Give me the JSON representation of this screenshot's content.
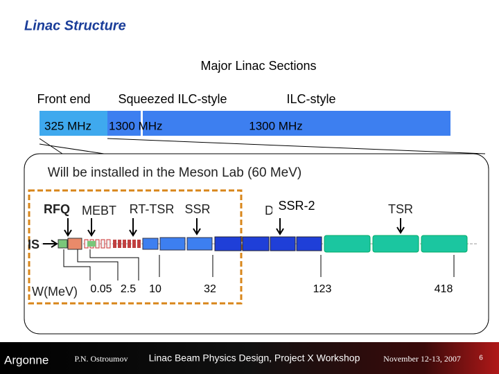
{
  "header": {
    "title": "Linac Structure"
  },
  "sections": {
    "title": "Major Linac Sections",
    "labels": [
      "Front end",
      "Squeezed ILC-style",
      "ILC-style"
    ],
    "frequencies": [
      "325 MHz",
      "1300 MHz",
      "1300 MHz"
    ]
  },
  "callout": {
    "text": "Will be installed in the Meson Lab (60 MeV)"
  },
  "diagram": {
    "components": [
      "RFQ",
      "MEBT",
      "RT-TSR",
      "SSR",
      "D",
      "SSR-2",
      "TSR"
    ],
    "source": "IS",
    "energy_label": "W(MeV)",
    "energies": [
      "0.05",
      "2.5",
      "10",
      "32",
      "123",
      "418"
    ]
  },
  "footer": {
    "logo": "Argonne",
    "author": "P.N. Ostroumov",
    "talk": "Linac Beam Physics Design, Project X Workshop",
    "date": "November 12-13, 2007",
    "page": "6"
  }
}
